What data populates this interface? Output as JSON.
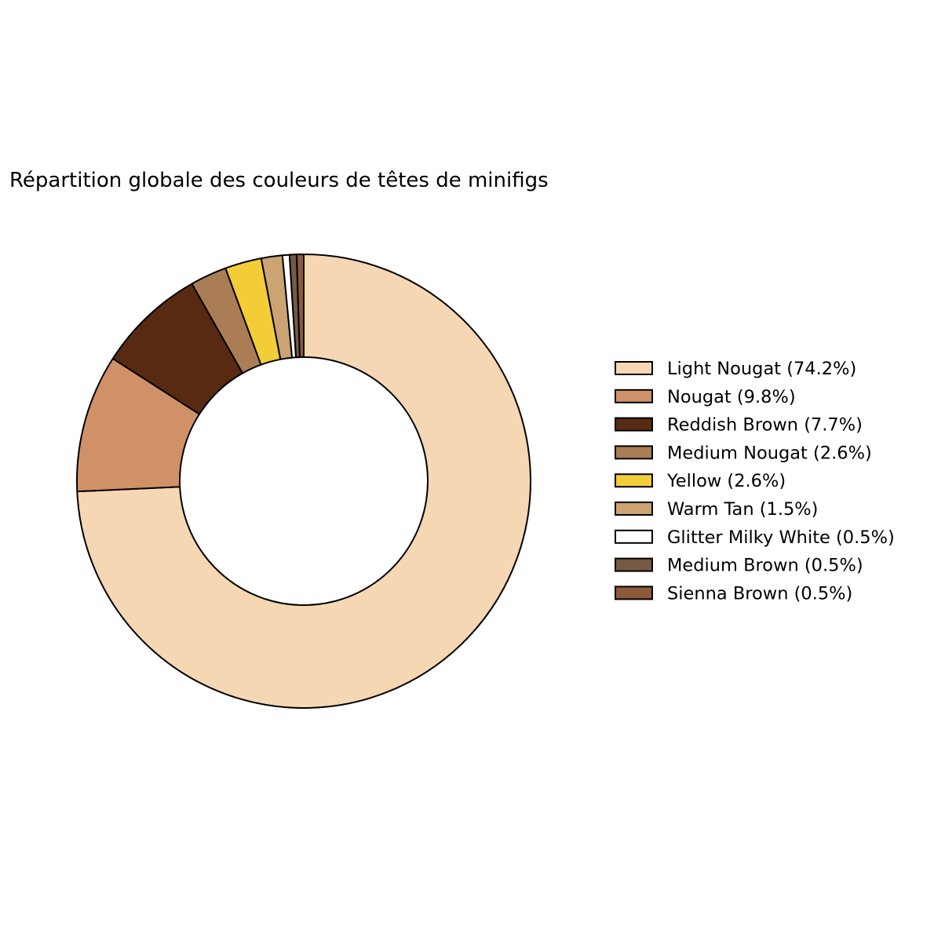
{
  "chart_data": {
    "type": "pie",
    "donut": true,
    "title": "Répartition globale des couleurs de têtes de minifigs",
    "start_angle_deg": 90,
    "direction": "clockwise",
    "legend_placement": "right",
    "edge_color": "#000000",
    "slices": [
      {
        "label": "Light Nougat",
        "value": 74.2,
        "legend": "Light Nougat (74.2%)",
        "color": "#F6D7B3"
      },
      {
        "label": "Nougat",
        "value": 9.8,
        "legend": "Nougat (9.8%)",
        "color": "#D09168"
      },
      {
        "label": "Reddish Brown",
        "value": 7.7,
        "legend": "Reddish Brown (7.7%)",
        "color": "#582A12"
      },
      {
        "label": "Medium Nougat",
        "value": 2.6,
        "legend": "Medium Nougat (2.6%)",
        "color": "#AA7D55"
      },
      {
        "label": "Yellow",
        "value": 2.6,
        "legend": "Yellow (2.6%)",
        "color": "#F2CD37"
      },
      {
        "label": "Warm Tan",
        "value": 1.5,
        "legend": "Warm Tan (1.5%)",
        "color": "#CCA373"
      },
      {
        "label": "Glitter Milky White",
        "value": 0.5,
        "legend": "Glitter Milky White (0.5%)",
        "color": "#FFFFFF"
      },
      {
        "label": "Medium Brown",
        "value": 0.5,
        "legend": "Medium Brown (0.5%)",
        "color": "#755945"
      },
      {
        "label": "Sienna Brown",
        "value": 0.5,
        "legend": "Sienna Brown (0.5%)",
        "color": "#8D5A3A"
      }
    ]
  }
}
